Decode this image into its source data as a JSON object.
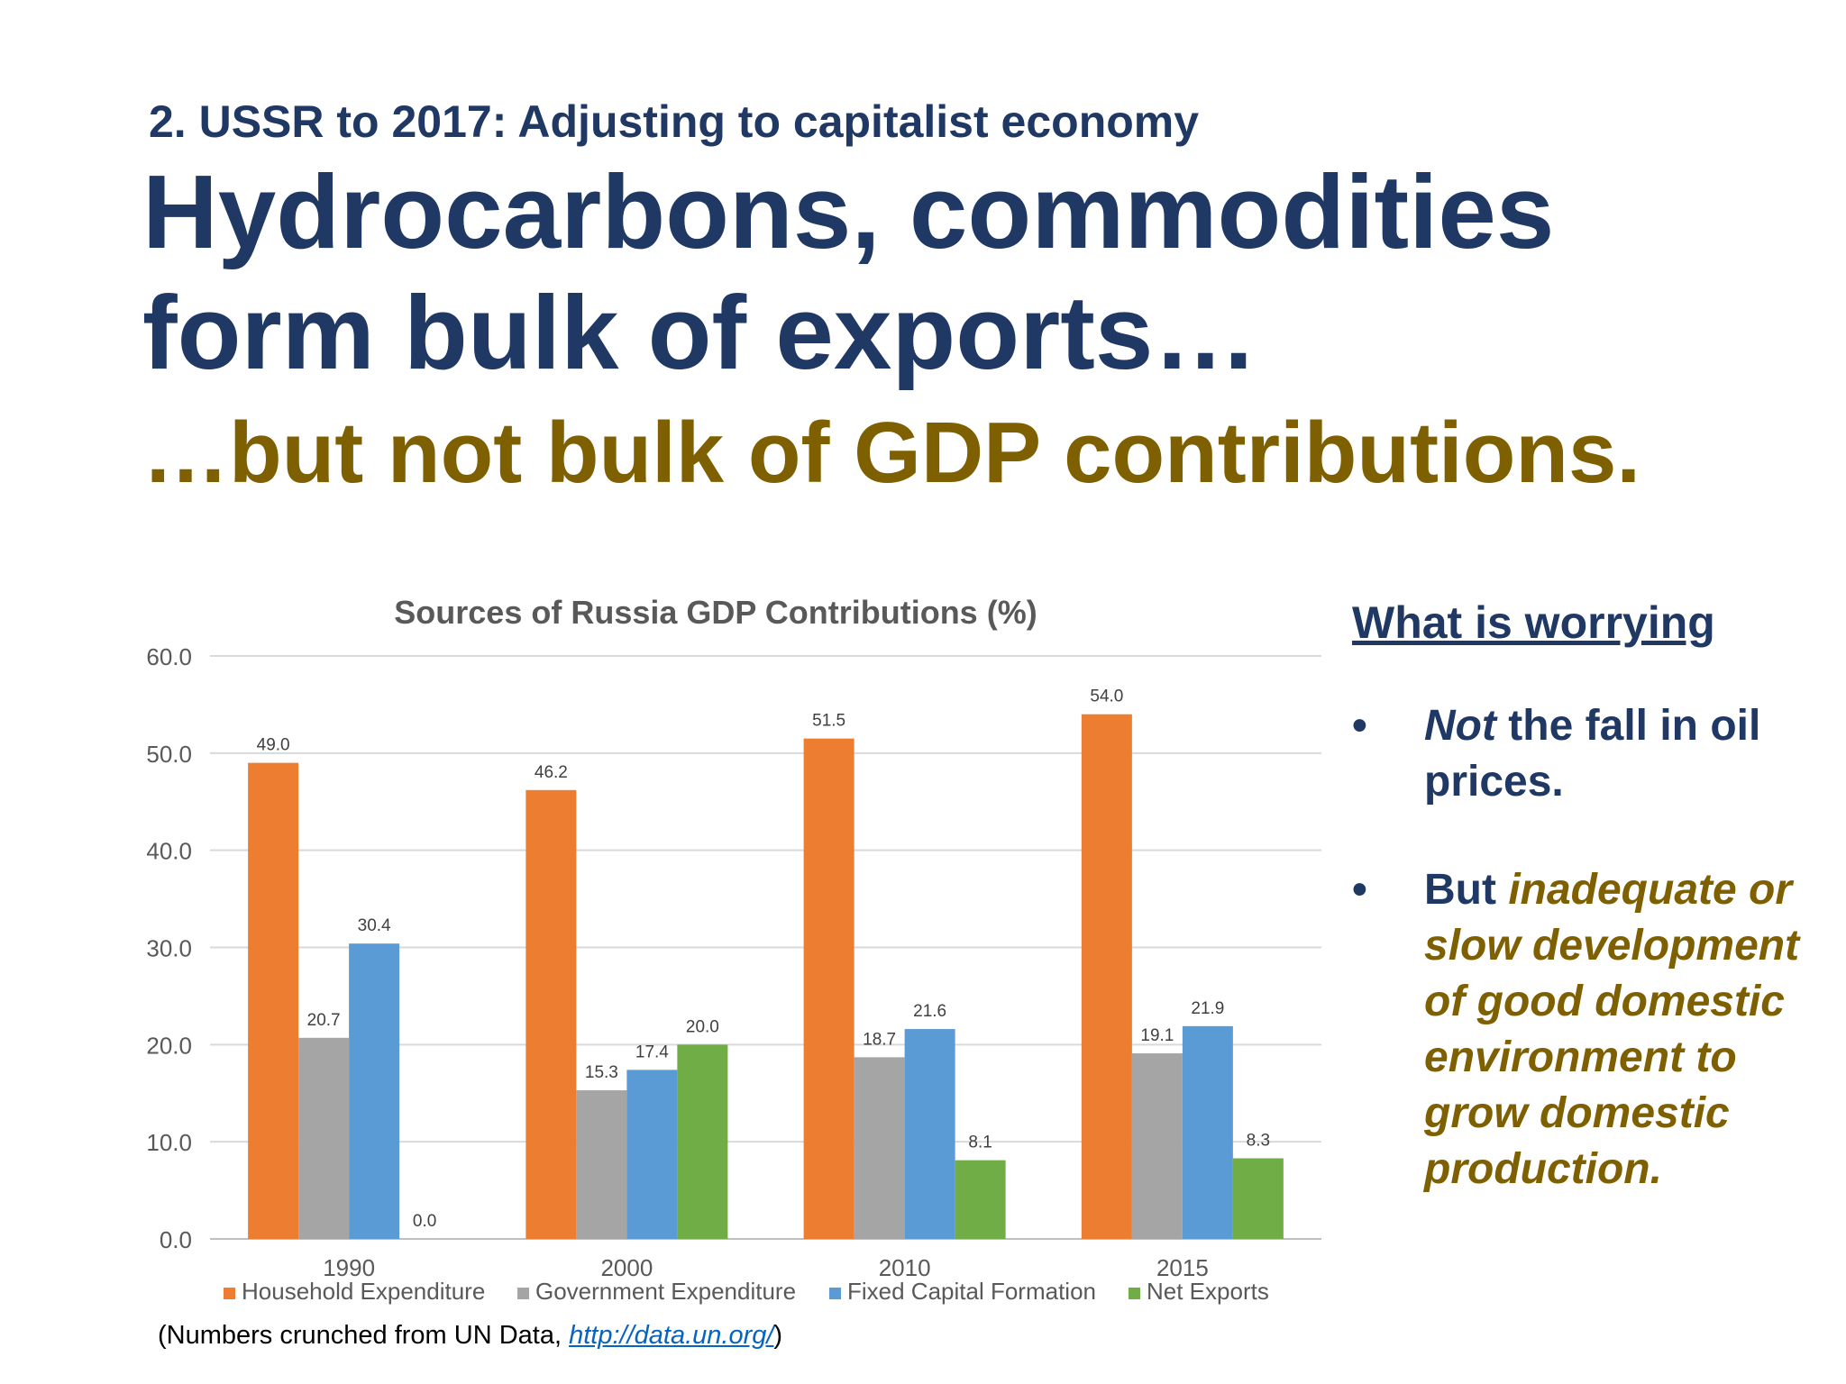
{
  "header": {
    "kicker": "2. USSR to 2017: Adjusting to capitalist economy",
    "headline_line1": "Hydrocarbons, commodities",
    "headline_line2": "form bulk of exports…",
    "subhead": "…but not bulk of GDP contributions."
  },
  "colors": {
    "navy": "#1f3864",
    "gold": "#7f6000",
    "household": "#ed7d31",
    "government": "#a5a5a5",
    "fixed_capital": "#5b9bd5",
    "net_exports": "#70ad47"
  },
  "chart_data": {
    "type": "bar",
    "title": "Sources of Russia GDP Contributions (%)",
    "categories": [
      "1990",
      "2000",
      "2010",
      "2015"
    ],
    "series": [
      {
        "name": "Household Expenditure",
        "values": [
          49.0,
          46.2,
          51.5,
          54.0
        ]
      },
      {
        "name": "Government Expenditure",
        "values": [
          20.7,
          15.3,
          18.7,
          19.1
        ]
      },
      {
        "name": "Fixed Capital Formation",
        "values": [
          30.4,
          17.4,
          21.6,
          21.9
        ]
      },
      {
        "name": "Net Exports",
        "values": [
          0.0,
          20.0,
          8.1,
          8.3
        ]
      }
    ],
    "ylim": [
      0,
      60
    ],
    "yticks": [
      "0.0",
      "10.0",
      "20.0",
      "30.0",
      "40.0",
      "50.0",
      "60.0"
    ],
    "grid": true,
    "legend_position": "bottom",
    "data_labels": true
  },
  "sidebar": {
    "title": "What is worrying",
    "bullet_char": "•",
    "bullet1_italic": "Not",
    "bullet1_rest": " the fall in oil prices.",
    "bullet2_lead": "But ",
    "bullet2_emphasis": "inadequate or slow development of good domestic environment to grow domestic production."
  },
  "footer": {
    "prefix": "(Numbers crunched from UN Data, ",
    "link_text": "http://data.un.org/",
    "suffix": ")"
  }
}
